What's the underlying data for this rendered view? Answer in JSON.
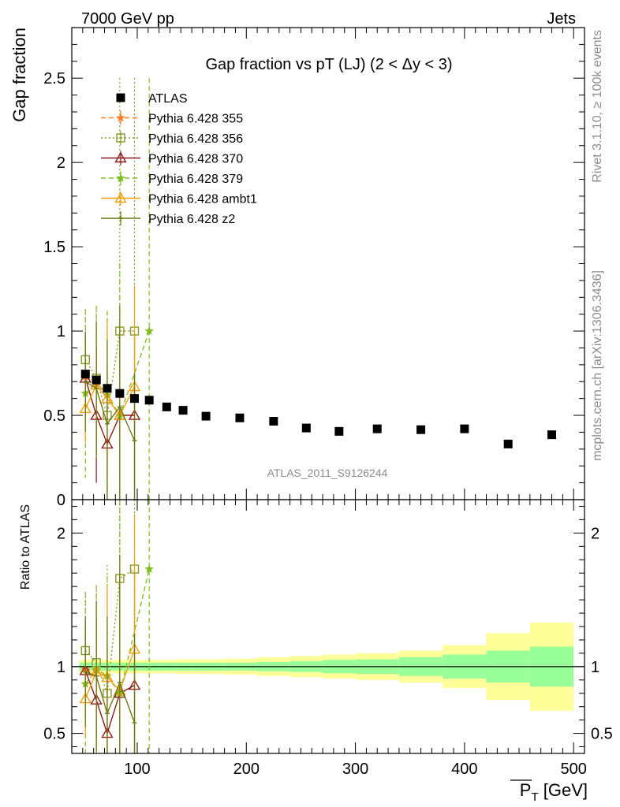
{
  "header": {
    "left": "7000 GeV pp",
    "right": "Jets"
  },
  "side_labels": {
    "rivet": "Rivet 3.1.10, ≥ 100k events",
    "mcplots": "mcplots.cern.ch [arXiv:1306.3436]"
  },
  "watermark": "ATLAS_2011_S9126244",
  "chart_data": [
    {
      "type": "scatter",
      "panel": "main",
      "title": "Gap fraction vs pT (LJ) (2 < Δy < 3)",
      "ylabel": "Gap fraction",
      "xlabel": "P_T [GeV]",
      "xlim": [
        40,
        510
      ],
      "ylim": [
        0,
        2.8
      ],
      "xticks": [
        100,
        200,
        300,
        400,
        500
      ],
      "yticks": [
        0.5,
        1,
        1.5,
        2,
        2.5
      ],
      "ytick_labels": [
        "0.5",
        "1",
        "1.5",
        "2",
        "2.5"
      ],
      "legend_position": "top-left",
      "series": [
        {
          "name": "ATLAS",
          "marker": "square",
          "color": "#000000",
          "x": [
            52.5,
            62.5,
            72.5,
            84,
            97.5,
            111,
            127,
            142,
            163,
            194,
            225,
            255,
            285,
            320,
            360,
            400,
            440,
            480
          ],
          "y": [
            0.745,
            0.71,
            0.66,
            0.63,
            0.6,
            0.59,
            0.55,
            0.53,
            0.495,
            0.485,
            0.465,
            0.425,
            0.405,
            0.42,
            0.415,
            0.42,
            0.33,
            0.385
          ]
        },
        {
          "name": "Pythia 6.428 355",
          "marker": "star",
          "line": "dashed",
          "color": "#ff7f2a",
          "x": [
            52.5,
            62.5
          ],
          "y": [
            0.73,
            0.69
          ],
          "yerr": [
            0.25,
            0.3
          ]
        },
        {
          "name": "Pythia 6.428 356",
          "marker": "open-square",
          "line": "dotted",
          "color": "#8a9a28",
          "x": [
            52.5,
            62.5,
            72.5,
            84,
            97.5
          ],
          "y": [
            0.83,
            0.72,
            0.5,
            1.0,
            1.0
          ],
          "yerr": [
            0.3,
            0.4,
            0.6,
            1.5,
            1.5
          ]
        },
        {
          "name": "Pythia 6.428 370",
          "marker": "open-triangle",
          "line": "solid",
          "color": "#8b1a1a",
          "x": [
            52.5,
            62.5,
            72.5,
            84,
            97.5
          ],
          "y": [
            0.72,
            0.5,
            0.33,
            0.5,
            0.5
          ],
          "yerr": [
            0.27,
            0.4,
            0.45,
            0.55,
            0.5
          ]
        },
        {
          "name": "Pythia 6.428 379",
          "marker": "star",
          "line": "dashed",
          "color": "#7fbf1f",
          "x": [
            52.5,
            62.5,
            72.5,
            84,
            111
          ],
          "y": [
            0.63,
            0.7,
            0.62,
            0.5,
            1.0
          ],
          "yerr": [
            0.5,
            0.45,
            0.5,
            0.9,
            1.5
          ]
        },
        {
          "name": "Pythia 6.428 ambt1",
          "marker": "open-triangle",
          "line": "solid",
          "color": "#f5a00a",
          "x": [
            52.5,
            62.5,
            72.5,
            84,
            97.5
          ],
          "y": [
            0.54,
            0.68,
            0.6,
            0.5,
            0.67
          ],
          "yerr": [
            0.2,
            0.35,
            0.45,
            0.55,
            0.6
          ]
        },
        {
          "name": "Pythia 6.428 z2",
          "marker": "plus",
          "line": "solid",
          "color": "#6b7a10",
          "x": [
            52.5,
            62.5,
            72.5,
            84,
            97.5
          ],
          "y": [
            0.7,
            0.66,
            0.45,
            0.55,
            0.35
          ],
          "yerr": [
            0.3,
            0.4,
            0.5,
            0.6,
            0.4
          ]
        }
      ]
    },
    {
      "type": "scatter",
      "panel": "ratio",
      "ylabel": "Ratio to ATLAS",
      "xlabel": "P_T [GeV]",
      "xlim": [
        40,
        510
      ],
      "ylim": [
        0.35,
        2.25
      ],
      "xticks": [
        100,
        200,
        300,
        400,
        500
      ],
      "xtick_labels": [
        "100",
        "200",
        "300",
        "400",
        "500"
      ],
      "yticks": [
        0.5,
        1,
        2
      ],
      "ytick_labels": [
        "0.5",
        "1",
        "2"
      ],
      "bands": {
        "x_edges": [
          47,
          58,
          68,
          78,
          90,
          105,
          120,
          135,
          150,
          180,
          210,
          240,
          270,
          300,
          340,
          380,
          420,
          460,
          500
        ],
        "inner_halfwidth": [
          0.03,
          0.03,
          0.03,
          0.03,
          0.03,
          0.03,
          0.03,
          0.03,
          0.03,
          0.03,
          0.035,
          0.04,
          0.05,
          0.055,
          0.07,
          0.09,
          0.12,
          0.15
        ],
        "outer_halfwidth": [
          0.05,
          0.05,
          0.05,
          0.05,
          0.05,
          0.05,
          0.05,
          0.055,
          0.055,
          0.06,
          0.07,
          0.08,
          0.09,
          0.1,
          0.12,
          0.16,
          0.25,
          0.33
        ]
      },
      "series": [
        {
          "name": "Pythia 6.428 355",
          "color": "#ff7f2a",
          "x": [
            52.5,
            62.5
          ],
          "y": [
            0.98,
            0.97
          ]
        },
        {
          "name": "Pythia 6.428 356",
          "color": "#8a9a28",
          "x": [
            52.5,
            62.5,
            72.5,
            84,
            97.5
          ],
          "y": [
            1.12,
            1.03,
            0.8,
            1.66,
            1.73
          ]
        },
        {
          "name": "Pythia 6.428 370",
          "color": "#8b1a1a",
          "x": [
            52.5,
            62.5,
            72.5,
            84,
            97.5
          ],
          "y": [
            0.97,
            0.75,
            0.5,
            0.8,
            0.86
          ]
        },
        {
          "name": "Pythia 6.428 379",
          "color": "#7fbf1f",
          "x": [
            52.5,
            62.5,
            72.5,
            84,
            111
          ],
          "y": [
            0.87,
            0.98,
            0.93,
            0.8,
            1.73
          ]
        },
        {
          "name": "Pythia 6.428 ambt1",
          "color": "#f5a00a",
          "x": [
            52.5,
            62.5,
            72.5,
            84,
            97.5
          ],
          "y": [
            0.76,
            0.96,
            0.92,
            0.82,
            1.13
          ]
        },
        {
          "name": "Pythia 6.428 z2",
          "color": "#6b7a10",
          "x": [
            52.5,
            62.5,
            72.5,
            84,
            97.5
          ],
          "y": [
            0.96,
            0.93,
            0.65,
            0.88,
            0.58
          ]
        }
      ]
    }
  ]
}
